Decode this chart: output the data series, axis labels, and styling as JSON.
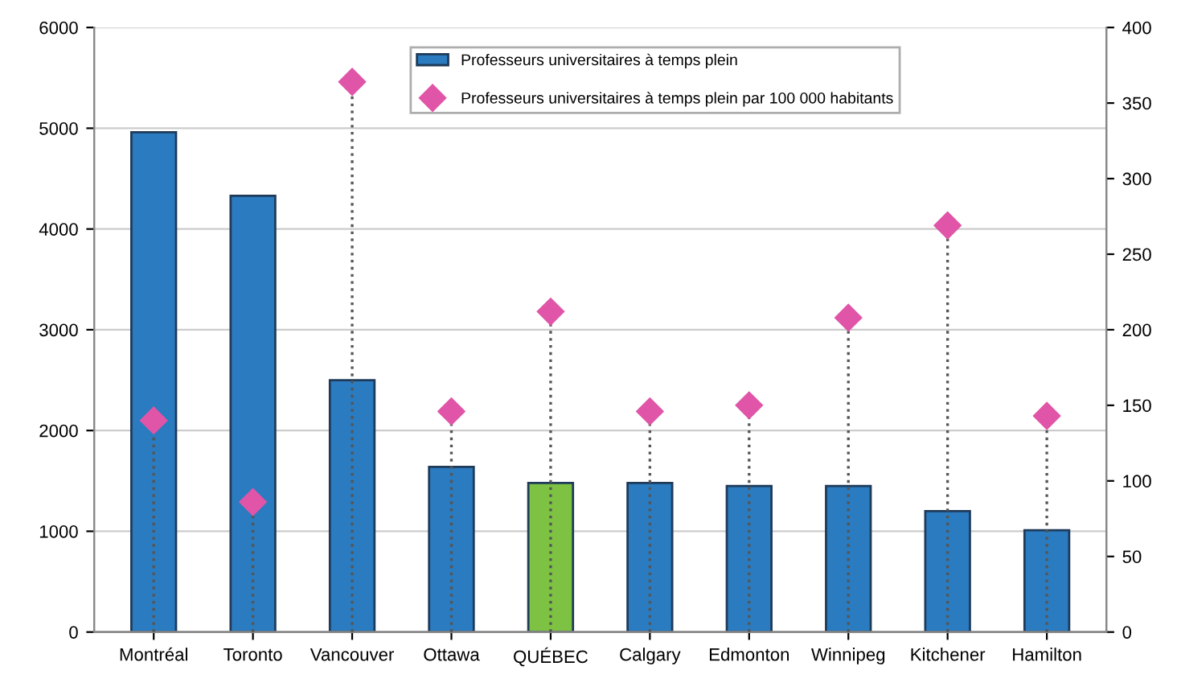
{
  "chart_data": {
    "type": "bar",
    "categories": [
      "Montréal",
      "Toronto",
      "Vancouver",
      "Ottawa",
      "QUÉBEC",
      "Calgary",
      "Edmonton",
      "Winnipeg",
      "Kitchener",
      "Hamilton"
    ],
    "series": [
      {
        "name": "Professeurs universitaires à temps plein",
        "color": "#2a7bbf",
        "colors": [
          "#2a7bbf",
          "#2a7bbf",
          "#2a7bbf",
          "#2a7bbf",
          "#7dc243",
          "#2a7bbf",
          "#2a7bbf",
          "#2a7bbf",
          "#2a7bbf",
          "#2a7bbf"
        ],
        "values": [
          4960,
          4330,
          2500,
          1640,
          1480,
          1480,
          1450,
          1450,
          1200,
          1010
        ]
      },
      {
        "name": "Professeurs universitaires à temps plein par 100 000 habitants",
        "type": "lollipop",
        "axis": "y2",
        "color": "#e055a8",
        "marker": "diamond",
        "line_style": "dotted",
        "values": [
          140,
          86,
          364,
          146,
          212,
          146,
          150,
          208,
          269,
          143
        ]
      }
    ],
    "ylim": [
      0,
      6000
    ],
    "yticks": [
      0,
      1000,
      2000,
      3000,
      4000,
      5000,
      6000
    ],
    "y2lim": [
      0,
      400
    ],
    "y2ticks": [
      0,
      50,
      100,
      150,
      200,
      250,
      300,
      350,
      400
    ],
    "grid": "y",
    "legend": "top"
  }
}
